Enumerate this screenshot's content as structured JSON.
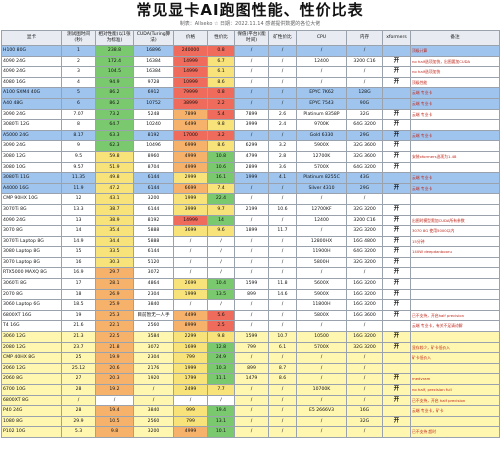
{
  "title": "常见显卡AI跑图性能、性价比表",
  "subtitle": "制表：Allseko   ☆ 日期：2022.11.14   感谢提供数据的各位大佬",
  "headers": [
    "显卡",
    "测试图时间(秒)",
    "相对性能(以1张为标准)",
    "CUDA(Turing算法)",
    "价格",
    "性价比",
    "保值(平台)(能时间)",
    "矿性价比",
    "CPU",
    "内存",
    "xformers",
    "备注"
  ],
  "rows": [
    {
      "band": "blue",
      "cells": [
        "H100 80G",
        "1",
        "238.8",
        "16896",
        "240000",
        "0.8",
        "/",
        "/",
        "/",
        "/",
        "",
        "顶级计算"
      ]
    },
    {
      "band": "white",
      "cells": [
        "4090 24G",
        "2",
        "172.4",
        "16384",
        "14999",
        "6.7",
        "/",
        "/",
        "12400",
        "3200 C16",
        "开",
        "no half选项加快，出图要加CUDA"
      ]
    },
    {
      "band": "white",
      "cells": [
        "4090 24G",
        "3",
        "104.5",
        "16384",
        "14999",
        "6.1",
        "/",
        "/",
        "/",
        "/",
        "开",
        "no half选项加快"
      ]
    },
    {
      "band": "white",
      "cells": [
        "4080 16G",
        "4",
        "94.9",
        "9728",
        "10999",
        "8.6",
        "/",
        "/",
        "/",
        "/",
        "开",
        "顶级性能"
      ]
    },
    {
      "band": "blue",
      "cells": [
        "A100 SXM4 40G",
        "5",
        "86.2",
        "6912",
        "79999",
        "0.8",
        "/",
        "/",
        "EPYC 7K62",
        "128G",
        "",
        "云端 专业卡"
      ]
    },
    {
      "band": "blue",
      "cells": [
        "A40 48G",
        "6",
        "86.2",
        "10752",
        "38999",
        "2.2",
        "/",
        "/",
        "EPYC 7543",
        "90G",
        "",
        "云端 专业卡"
      ]
    },
    {
      "band": "white",
      "cells": [
        "3090 24G",
        "7.07",
        "73.2",
        "5248",
        "7899",
        "5.4",
        "7899",
        "2.6",
        "Platinum 8358P",
        "32G",
        "开",
        "云端 专业卡"
      ]
    },
    {
      "band": "white",
      "cells": [
        "3080Ti 12G",
        "8",
        "64.7",
        "10240",
        "6499",
        "9.8",
        "3999",
        "2.4",
        "9700K",
        "64G 3200",
        "开",
        ""
      ]
    },
    {
      "band": "blue",
      "cells": [
        "A5000 24G",
        "8.17",
        "63.3",
        "8192",
        "17000",
        "3.2",
        "/",
        "/",
        "Gold 6330",
        "29G",
        "开",
        "云端 专业卡"
      ]
    },
    {
      "band": "white",
      "cells": [
        "3090 24G",
        "9",
        "62.3",
        "10496",
        "6999",
        "8.6",
        "6299",
        "3.2",
        "5900X",
        "32G 3600",
        "开",
        ""
      ]
    },
    {
      "band": "white",
      "cells": [
        "3080 12G",
        "9.5",
        "59.8",
        "8960",
        "4999",
        "10.8",
        "4799",
        "2.8",
        "12700K",
        "32G 3600",
        "开",
        "安装xformers选项为1.48"
      ]
    },
    {
      "band": "white",
      "cells": [
        "3080 10G",
        "9.57",
        "51.9",
        "8704",
        "4999",
        "10.6",
        "2899",
        "3.6",
        "5700X",
        "64G 3200",
        "开",
        ""
      ]
    },
    {
      "band": "blue",
      "cells": [
        "3080Ti 11G",
        "11.35",
        "49.8",
        "6144",
        "2999",
        "16.1",
        "1999",
        "4.1",
        "Platinum 8255C",
        "43G",
        "",
        "云端 专业卡"
      ]
    },
    {
      "band": "blue",
      "cells": [
        "A4000 16G",
        "11.9",
        "47.2",
        "6144",
        "6699",
        "7.4",
        "/",
        "/",
        "Silver 4310",
        "29G",
        "开",
        "云端 专业卡"
      ]
    },
    {
      "band": "white",
      "cells": [
        "CMP 90HX 10G",
        "12",
        "43.1",
        "3200",
        "1999",
        "22.4",
        "/",
        "/",
        "/",
        "/",
        "",
        ""
      ]
    },
    {
      "band": "white",
      "cells": [
        "3070Ti 8G",
        "13.3",
        "38.7",
        "6144",
        "3999",
        "9.7",
        "2199",
        "10.6",
        "12700KF",
        "32G 3200",
        "开",
        ""
      ]
    },
    {
      "band": "white",
      "cells": [
        "4090 24G",
        "13",
        "38.9",
        "8192",
        "14999",
        "14",
        "/",
        "/",
        "12400",
        "3200 C16",
        "开",
        "出图时模型需加CUDA所有参数"
      ]
    },
    {
      "band": "white",
      "cells": [
        "3070 8G",
        "14",
        "35.4",
        "5888",
        "3699",
        "9.6",
        "1899",
        "11.7",
        "/",
        "32G 3200",
        "开",
        "3070 8G 使用5000以内"
      ]
    },
    {
      "band": "white",
      "cells": [
        "3070Ti Laptop 8G",
        "14.9",
        "34.4",
        "5888",
        "/",
        "/",
        "/",
        "/",
        "12800HX",
        "16G 4800",
        "开",
        "15分钟"
      ]
    },
    {
      "band": "white",
      "cells": [
        "3080 Laptop 8G",
        "15",
        "33.5",
        "6144",
        "/",
        "/",
        "/",
        "/",
        "11900H",
        "64G 3200",
        "开",
        "140W deepdanbooru"
      ]
    },
    {
      "band": "white",
      "cells": [
        "3070 Laptop 8G",
        "16",
        "30.3",
        "5120",
        "/",
        "/",
        "/",
        "/",
        "5800H",
        "32G 3200",
        "开",
        ""
      ]
    },
    {
      "band": "white",
      "cells": [
        "RTX5000 MAXQ 8G",
        "16.9",
        "29.7",
        "3072",
        "/",
        "/",
        "/",
        "/",
        "/",
        "/",
        "开",
        ""
      ]
    },
    {
      "band": "white",
      "cells": [
        "3060Ti 8G",
        "17",
        "28.1",
        "4864",
        "2699",
        "10.4",
        "1599",
        "11.8",
        "5600X",
        "16G 3200",
        "开",
        ""
      ]
    },
    {
      "band": "white",
      "cells": [
        "2070 8G",
        "18",
        "26.9",
        "2304",
        "1999",
        "13.5",
        "899",
        "14.6",
        "5900X",
        "16G 3200",
        "开",
        ""
      ]
    },
    {
      "band": "white",
      "cells": [
        "3060 Laptop 6G",
        "18.5",
        "25.9",
        "3840",
        "/",
        "/",
        "/",
        "/",
        "11800H",
        "16G 3200",
        "开",
        ""
      ]
    },
    {
      "band": "white",
      "cells": [
        "6800XT 16G",
        "19",
        "25.3",
        "目前暂无一人手",
        "4499",
        "5.6",
        "/",
        "/",
        "5800X",
        "16G 3600",
        "开",
        "已不支持，开启half precision"
      ]
    },
    {
      "band": "white",
      "cells": [
        "T4 16G",
        "21.6",
        "22.1",
        "2560",
        "8999",
        "2.5",
        "/",
        "/",
        "/",
        "/",
        "",
        "云端 专业卡，有关不足请谅解"
      ]
    },
    {
      "band": "yellow",
      "cells": [
        "3060 12G",
        "21.3",
        "22.5",
        "3584",
        "2299",
        "9.8",
        "1599",
        "10.7",
        "10500",
        "16G 3200",
        "开",
        ""
      ]
    },
    {
      "band": "yellow",
      "cells": [
        "2080 12G",
        "23.7",
        "21.8",
        "3072",
        "1699",
        "12.8",
        "799",
        "6.1",
        "5700X",
        "32G 3200",
        "开",
        "显存较少，矿卡低价入"
      ]
    },
    {
      "band": "yellow",
      "cells": [
        "CMP 40HX 8G",
        "25",
        "19.9",
        "2304",
        "799",
        "24.9",
        "/",
        "/",
        "/",
        "/",
        "",
        "矿卡低价入"
      ]
    },
    {
      "band": "yellow",
      "cells": [
        "2060 12G",
        "25.12",
        "20.6",
        "2176",
        "1999",
        "10.3",
        "899",
        "8.7",
        "/",
        "/",
        "",
        ""
      ]
    },
    {
      "band": "yellow",
      "cells": [
        "2060 8G",
        "27",
        "20.3",
        "1920",
        "1799",
        "11.1",
        "1479",
        "8.6",
        "/",
        "/",
        "开",
        "medvram"
      ]
    },
    {
      "band": "yellow",
      "cells": [
        "6700 10G",
        "28",
        "19.2",
        "/",
        "2499",
        "7.7",
        "/",
        "/",
        "10700K",
        "/",
        "开",
        "no half, precision full"
      ]
    },
    {
      "band": "yellow",
      "cells": [
        "6800XT 8G",
        "/",
        "/",
        "/",
        "/",
        "/",
        "/",
        "/",
        "/",
        "/",
        "开",
        "已不支持，开启 half precision"
      ]
    },
    {
      "band": "yellow",
      "cells": [
        "P40 24G",
        "28",
        "19.4",
        "3840",
        "999",
        "19.4",
        "/",
        "/",
        "E5 2666V3",
        "16G",
        "",
        "云端 专业卡，矿卡"
      ]
    },
    {
      "band": "yellow",
      "cells": [
        "1080 8G",
        "29.9",
        "10.5",
        "2560",
        "799",
        "13.1",
        "/",
        "/",
        "/",
        "32G",
        "开",
        ""
      ]
    },
    {
      "band": "yellow",
      "cells": [
        "P102 10G",
        "5.3",
        "9.8",
        "3200",
        "4999",
        "10.1",
        "/",
        "/",
        "/",
        "/",
        "",
        "已不支持 超时"
      ]
    }
  ],
  "colors": {
    "blue_band": "#9fc5ef",
    "white_band": "#ffffff",
    "yellow_band": "#fff6b0",
    "note_red": "#c0281c",
    "good_green": "#7bc96f",
    "mid_yellow": "#f8e27a",
    "bad_red": "#ef6b5b"
  }
}
